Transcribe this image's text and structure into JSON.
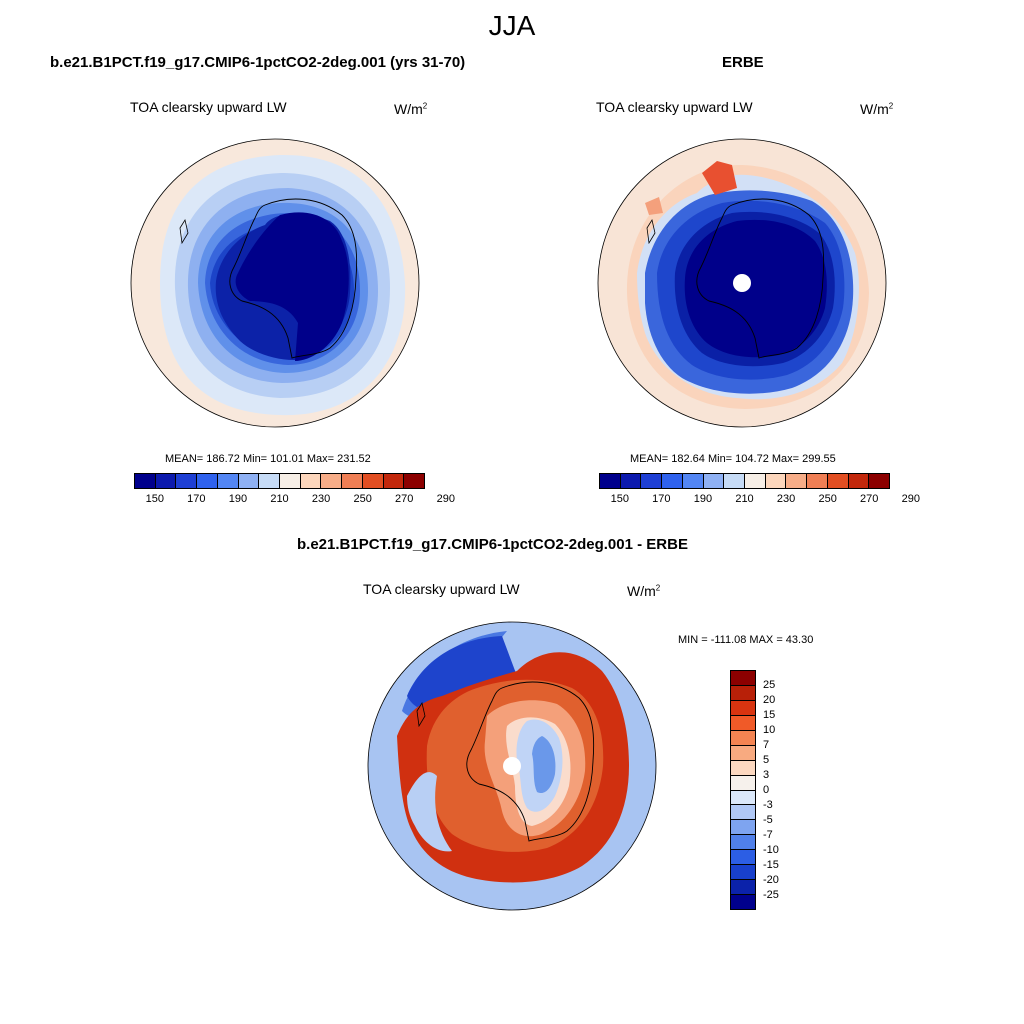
{
  "figure_title": "JJA",
  "panels": {
    "model": {
      "title": "b.e21.B1PCT.f19_g17.CMIP6-1pctCO2-2deg.001 (yrs 31-70)",
      "variable": "TOA clearsky upward LW",
      "units": "W/m",
      "units_exp": "2",
      "stats": "MEAN= 186.72  Min= 101.01  Max= 231.52"
    },
    "obs": {
      "title": "ERBE",
      "variable": "TOA clearsky upward LW",
      "units": "W/m",
      "units_exp": "2",
      "stats": "MEAN= 182.64  Min= 104.72  Max= 299.55"
    },
    "diff": {
      "title": "b.e21.B1PCT.f19_g17.CMIP6-1pctCO2-2deg.001 - ERBE",
      "variable": "TOA clearsky upward LW",
      "units": "W/m",
      "units_exp": "2",
      "stats": "MIN = -111.08 MAX =  43.30"
    }
  },
  "colorbar_abs": {
    "colors": [
      "#00008c",
      "#0c1aae",
      "#1e3fd4",
      "#2f62ee",
      "#5386f4",
      "#8fb1f4",
      "#c6dbf6",
      "#f6eee6",
      "#fcd6bc",
      "#f7ad88",
      "#f07f55",
      "#e24e22",
      "#c3280c",
      "#8c0000"
    ],
    "labels": [
      "150",
      "170",
      "190",
      "210",
      "230",
      "250",
      "270",
      "290"
    ]
  },
  "colorbar_diff": {
    "colors": [
      "#8c0000",
      "#b82008",
      "#d83410",
      "#f05a28",
      "#f48452",
      "#f8aa80",
      "#fcd8c0",
      "#f6f1ec",
      "#dbe8fa",
      "#b0c8f6",
      "#7ea4f0",
      "#5080ea",
      "#2c5ee4",
      "#1840cc",
      "#0b22aa",
      "#00008c"
    ],
    "labels": [
      "25",
      "20",
      "15",
      "10",
      "7",
      "5",
      "3",
      "0",
      "-3",
      "-5",
      "-7",
      "-10",
      "-15",
      "-20",
      "-25"
    ]
  },
  "maps": {
    "model": {
      "zones": [
        "#f8e8dc",
        "#dce8f8",
        "#b8cff4",
        "#8eb0f0",
        "#6090ea",
        "#3866dc",
        "#1c44c8",
        "#0c22a8",
        "#00008a"
      ]
    },
    "obs": {
      "zones": [
        "#f8e4d6",
        "#fad4bc",
        "#d2e0f6",
        "#3a66dc",
        "#1e46cc",
        "#0a20a6",
        "#00008a"
      ],
      "pole_hole": true
    },
    "diff": {
      "zones": [
        "#a8c4f2",
        "#4a78e2",
        "#1e44cc",
        "#d03010",
        "#e0602e",
        "#f4a07a",
        "#fadccc",
        "#c0d4f6",
        "#6a98ea"
      ],
      "pole_hole": true
    }
  }
}
